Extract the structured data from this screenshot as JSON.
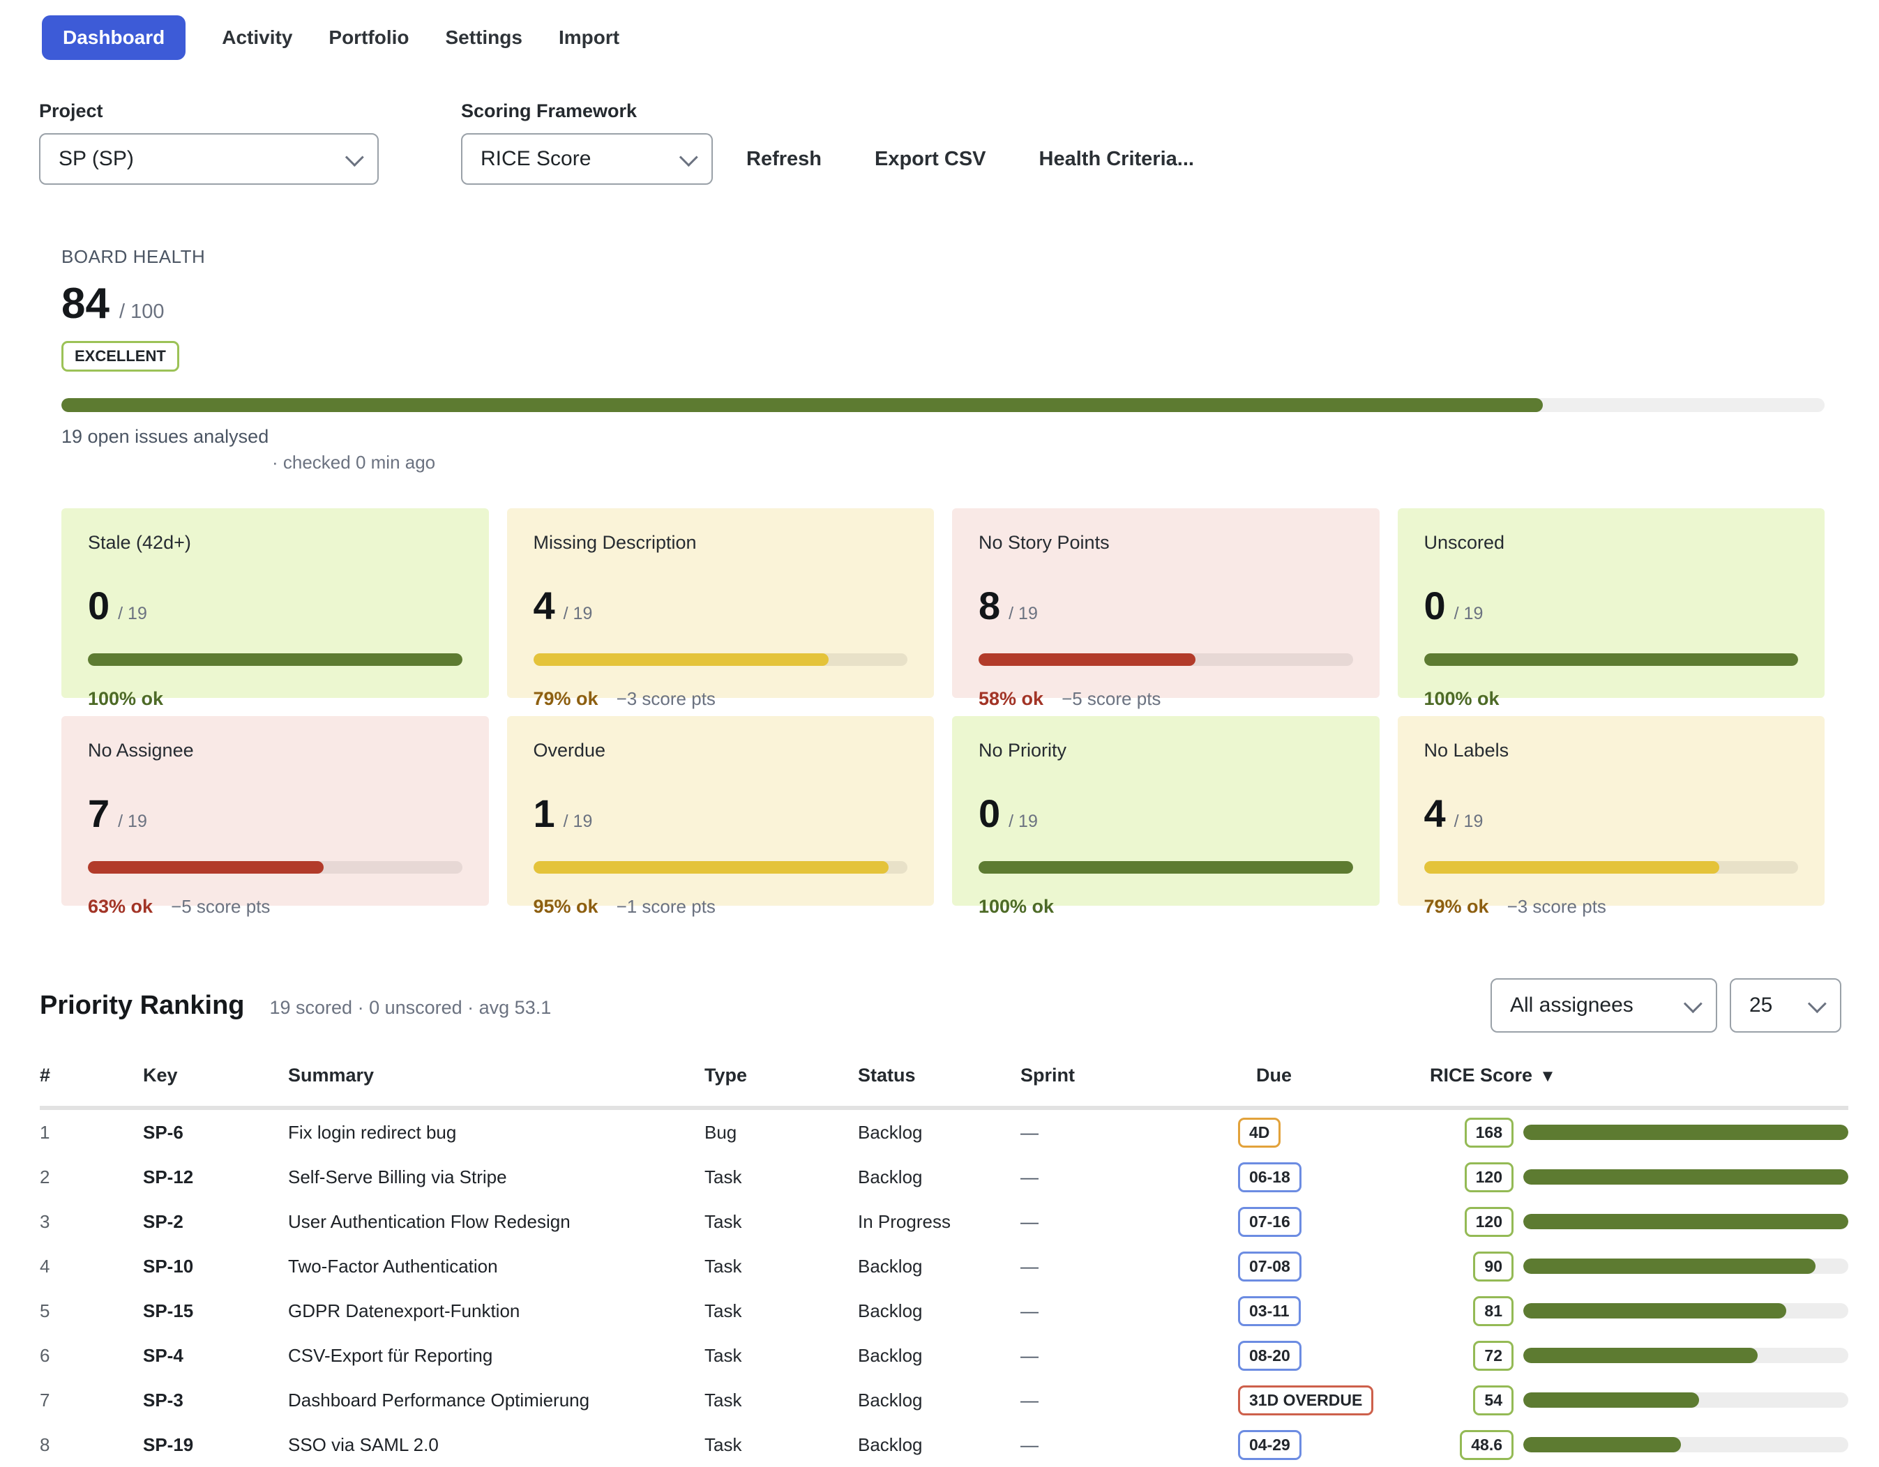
{
  "nav": {
    "tabs": [
      {
        "label": "Dashboard",
        "active": true
      },
      {
        "label": "Activity",
        "active": false
      },
      {
        "label": "Portfolio",
        "active": false
      },
      {
        "label": "Settings",
        "active": false
      },
      {
        "label": "Import",
        "active": false
      }
    ]
  },
  "controls": {
    "project_label": "Project",
    "project_value": "SP (SP)",
    "framework_label": "Scoring Framework",
    "framework_value": "RICE Score",
    "actions": [
      {
        "label": "Refresh"
      },
      {
        "label": "Export CSV"
      },
      {
        "label": "Health Criteria..."
      }
    ]
  },
  "board_health": {
    "label": "BOARD HEALTH",
    "score": "84",
    "score_max": "/ 100",
    "status": "EXCELLENT",
    "progress_pct": 84,
    "issues_line": "19 open issues analysed",
    "checked_line": "· checked 0 min ago"
  },
  "health_cards": [
    {
      "title": "Stale (42d+)",
      "count": "0",
      "total": "/ 19",
      "pct": 100,
      "pct_label": "100% ok",
      "penalty": "",
      "tone": "green"
    },
    {
      "title": "Missing Description",
      "count": "4",
      "total": "/ 19",
      "pct": 79,
      "pct_label": "79% ok",
      "penalty": "−3 score pts",
      "tone": "yellow"
    },
    {
      "title": "No Story Points",
      "count": "8",
      "total": "/ 19",
      "pct": 58,
      "pct_label": "58% ok",
      "penalty": "−5 score pts",
      "tone": "red"
    },
    {
      "title": "Unscored",
      "count": "0",
      "total": "/ 19",
      "pct": 100,
      "pct_label": "100% ok",
      "penalty": "",
      "tone": "green"
    },
    {
      "title": "No Assignee",
      "count": "7",
      "total": "/ 19",
      "pct": 63,
      "pct_label": "63% ok",
      "penalty": "−5 score pts",
      "tone": "red"
    },
    {
      "title": "Overdue",
      "count": "1",
      "total": "/ 19",
      "pct": 95,
      "pct_label": "95% ok",
      "penalty": "−1 score pts",
      "tone": "yellow"
    },
    {
      "title": "No Priority",
      "count": "0",
      "total": "/ 19",
      "pct": 100,
      "pct_label": "100% ok",
      "penalty": "",
      "tone": "green"
    },
    {
      "title": "No Labels",
      "count": "4",
      "total": "/ 19",
      "pct": 79,
      "pct_label": "79% ok",
      "penalty": "−3 score pts",
      "tone": "yellow"
    }
  ],
  "ranking": {
    "title": "Priority Ranking",
    "subtitle": "19 scored · 0 unscored · avg 53.1",
    "assignee_filter": "All assignees",
    "page_size": "25",
    "sort_icon": "▼",
    "columns": [
      "#",
      "Key",
      "Summary",
      "Type",
      "Status",
      "Sprint",
      "Due",
      "RICE Score"
    ],
    "rows": [
      {
        "rank": "1",
        "key": "SP-6",
        "summary": "Fix login redirect bug",
        "type": "Bug",
        "status": "Backlog",
        "sprint": "—",
        "due": "4D",
        "due_tone": "orange",
        "score": "168",
        "bar_pct": 100
      },
      {
        "rank": "2",
        "key": "SP-12",
        "summary": "Self-Serve Billing via Stripe",
        "type": "Task",
        "status": "Backlog",
        "sprint": "—",
        "due": "06-18",
        "due_tone": "blue",
        "score": "120",
        "bar_pct": 100
      },
      {
        "rank": "3",
        "key": "SP-2",
        "summary": "User Authentication Flow Redesign",
        "type": "Task",
        "status": "In Progress",
        "sprint": "—",
        "due": "07-16",
        "due_tone": "blue",
        "score": "120",
        "bar_pct": 100
      },
      {
        "rank": "4",
        "key": "SP-10",
        "summary": "Two-Factor Authentication",
        "type": "Task",
        "status": "Backlog",
        "sprint": "—",
        "due": "07-08",
        "due_tone": "blue",
        "score": "90",
        "bar_pct": 90
      },
      {
        "rank": "5",
        "key": "SP-15",
        "summary": "GDPR Datenexport-Funktion",
        "type": "Task",
        "status": "Backlog",
        "sprint": "—",
        "due": "03-11",
        "due_tone": "blue",
        "score": "81",
        "bar_pct": 81
      },
      {
        "rank": "6",
        "key": "SP-4",
        "summary": "CSV-Export für Reporting",
        "type": "Task",
        "status": "Backlog",
        "sprint": "—",
        "due": "08-20",
        "due_tone": "blue",
        "score": "72",
        "bar_pct": 72
      },
      {
        "rank": "7",
        "key": "SP-3",
        "summary": "Dashboard Performance Optimierung",
        "type": "Task",
        "status": "Backlog",
        "sprint": "—",
        "due": "31D OVERDUE",
        "due_tone": "red",
        "score": "54",
        "bar_pct": 54
      },
      {
        "rank": "8",
        "key": "SP-19",
        "summary": "SSO via SAML 2.0",
        "type": "Task",
        "status": "Backlog",
        "sprint": "—",
        "due": "04-29",
        "due_tone": "blue",
        "score": "48.6",
        "bar_pct": 48.6
      }
    ]
  },
  "colors": {
    "accent_blue": "#3d5bd7",
    "bar_green": "#5d7b31",
    "bar_yellow": "#e4c33a",
    "bar_red": "#b23b2a",
    "card_green_bg": "#ecf7d0",
    "card_yellow_bg": "#faf3d8",
    "card_red_bg": "#f9e9e6",
    "badge_green_border": "#94ba55",
    "badge_blue_border": "#6c8ce2",
    "badge_orange_border": "#e2a23b",
    "badge_red_border": "#cd604b"
  }
}
